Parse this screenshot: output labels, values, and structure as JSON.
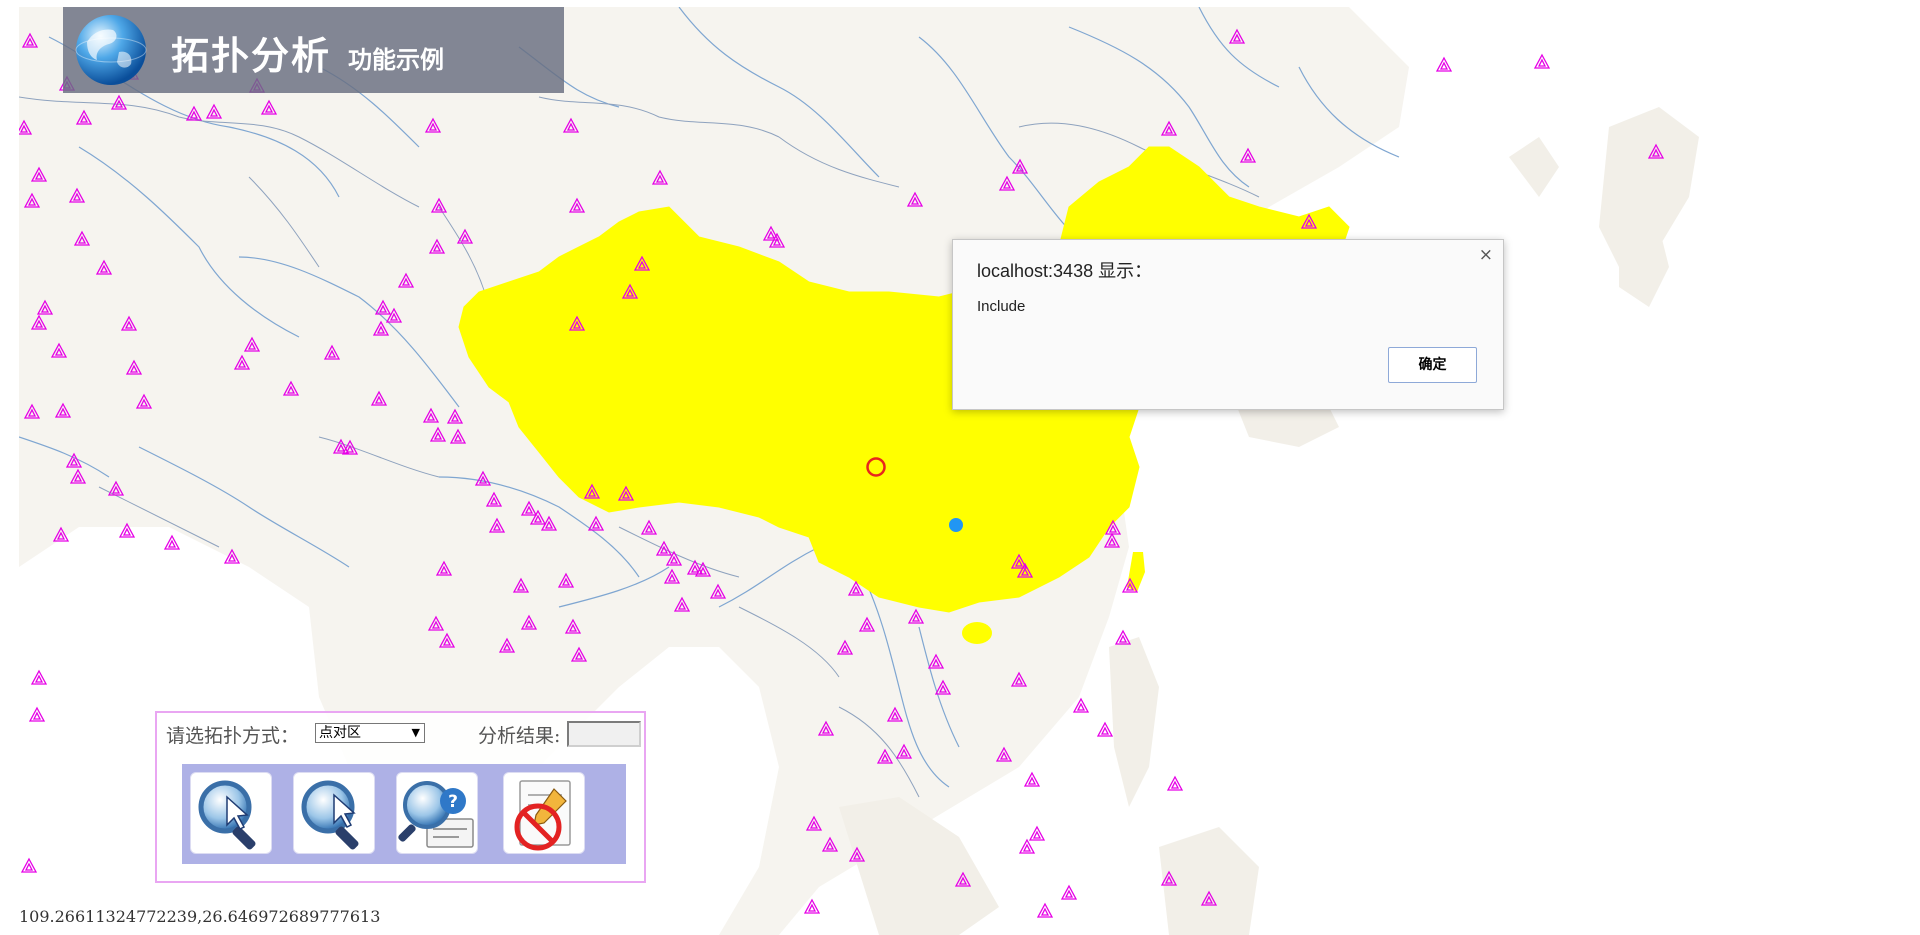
{
  "header": {
    "title": "拓扑分析",
    "subtitle": "功能示例"
  },
  "panel": {
    "topology_label": "请选拓扑方式：",
    "topology_selected": "点对区",
    "result_label": "分析结果:",
    "result_value": ""
  },
  "coordinates": "109.26611324772239,26.646972689777613",
  "alert": {
    "title": "localhost:3438 显示：",
    "message": "Include",
    "ok_label": "确定",
    "close_label": "×"
  },
  "colors": {
    "highlight_region": "#ffff00",
    "station_marker": "#e600e6",
    "query_point": "#2196f3",
    "target_ring": "#e8261d",
    "river": "#7fa6d1",
    "border": "#8ea2be",
    "land": "#f6f4ef",
    "sea": "#ffffff"
  },
  "icons": [
    "globe-icon",
    "select-point-icon",
    "select-region-icon",
    "query-icon",
    "clear-icon",
    "chevron-down-icon",
    "close-icon"
  ]
}
